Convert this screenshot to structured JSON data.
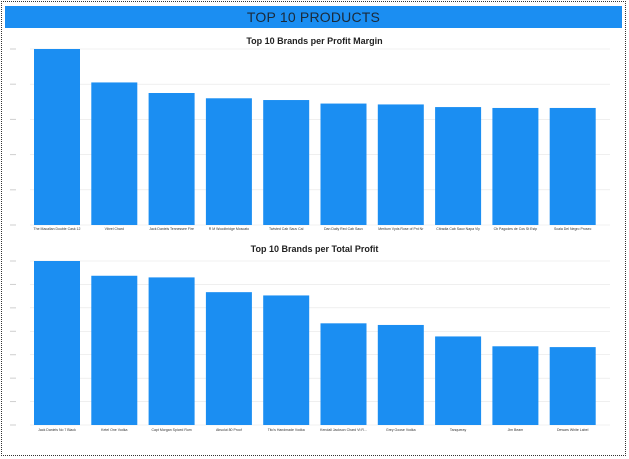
{
  "banner": {
    "title": "TOP 10 PRODUCTS"
  },
  "colors": {
    "bar": "#1b8ef2",
    "banner": "#1b8ef2",
    "grid": "#e6e6e6"
  },
  "chart_data": [
    {
      "type": "bar",
      "title": "Top 10 Brands per Profit Margin",
      "categories": [
        "The Macallan Double Cask 12",
        "Vibrel Chard",
        "Jack Daniels Tennessee Fire",
        "R M Woodbridge Moscato",
        "Twisted Cab Sauv Cal",
        "Dan Daily Red Cab Sauv",
        "Meritum Vyds Rose of Pnt Nr",
        "Citradia Cab Sauv Napa Vly",
        "Cb Pagodes de Cos St Estp",
        "Scala Del Negro Prosec"
      ],
      "values": [
        100,
        81,
        75,
        72,
        71,
        69,
        68.5,
        67,
        66.5,
        66.5
      ],
      "ylim": [
        0,
        100
      ],
      "grid": true,
      "xlabel": "",
      "ylabel": ""
    },
    {
      "type": "bar",
      "title": "Top 10 Brands per Total Profit",
      "categories": [
        "Jack Daniels No 7 Black",
        "Ketel One Vodka",
        "Capt Morgan Spiced Rum",
        "Absolut 80 Proof",
        "Tito's Handmade Vodka",
        "Kendall Jackson Chard Vt R...",
        "Grey Goose Vodka",
        "Tanqueray",
        "Jim Beam",
        "Dewars White Label"
      ],
      "values": [
        100,
        91,
        90,
        81,
        79,
        62,
        61,
        54,
        48,
        47.5
      ],
      "ylim": [
        0,
        100
      ],
      "grid": true,
      "xlabel": "",
      "ylabel": ""
    }
  ]
}
